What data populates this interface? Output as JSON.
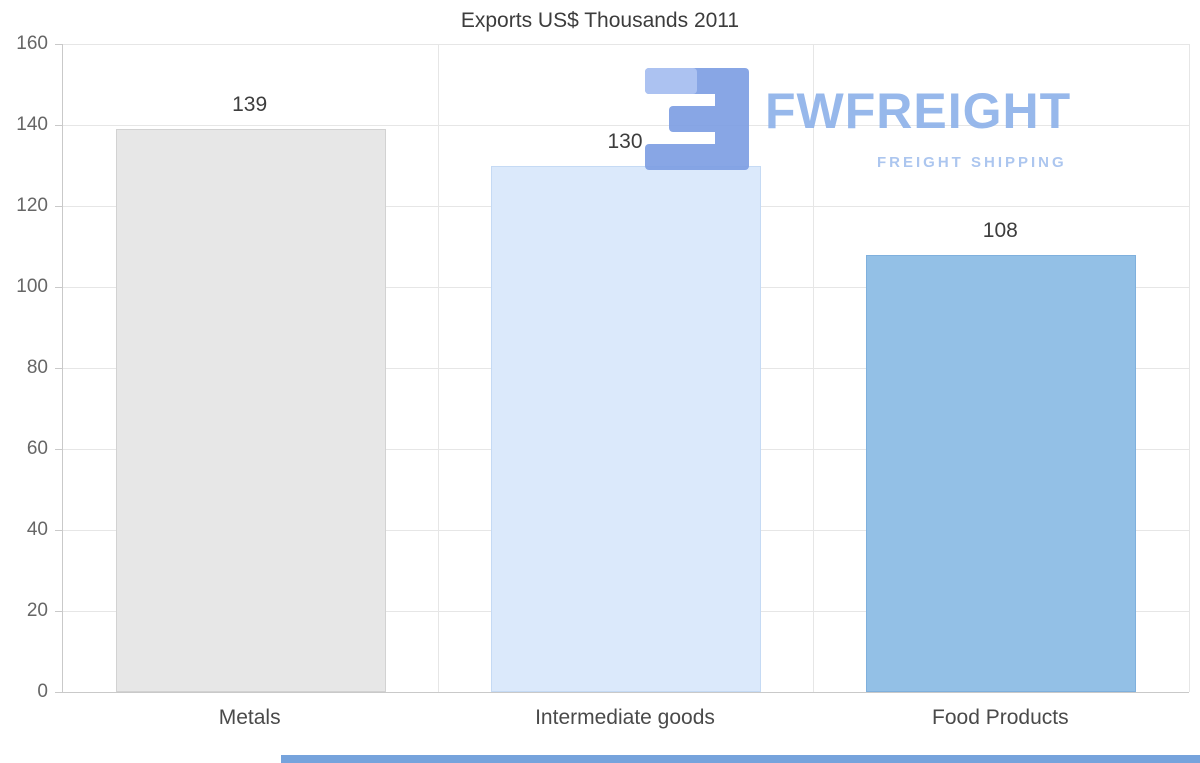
{
  "chart_data": {
    "type": "bar",
    "title": "Exports US$ Thousands 2011",
    "categories": [
      "Metals",
      "Intermediate goods",
      "Food Products"
    ],
    "values": [
      139,
      130,
      108
    ],
    "bar_colors": [
      "#e7e7e7",
      "#dbe9fb",
      "#93c0e6"
    ],
    "bar_border_colors": [
      "#d2d2d2",
      "#c5daf4",
      "#7fb0dd"
    ],
    "xlabel": "",
    "ylabel": "",
    "ylim": [
      0,
      160
    ],
    "yticks": [
      0,
      20,
      40,
      60,
      80,
      100,
      120,
      140,
      160
    ],
    "grid": true,
    "legend": false,
    "value_labels_shown": true
  },
  "watermark": {
    "brand": "FWFREIGHT",
    "tagline": "FREIGHT SHIPPING",
    "brand_color": "#8fb3ea",
    "tagline_color": "#a6c2ee",
    "icon_color": "#7e9fe3",
    "icon_accent_color": "#a6bdf0"
  },
  "footer": {
    "accent_color": "#76a3dc"
  }
}
